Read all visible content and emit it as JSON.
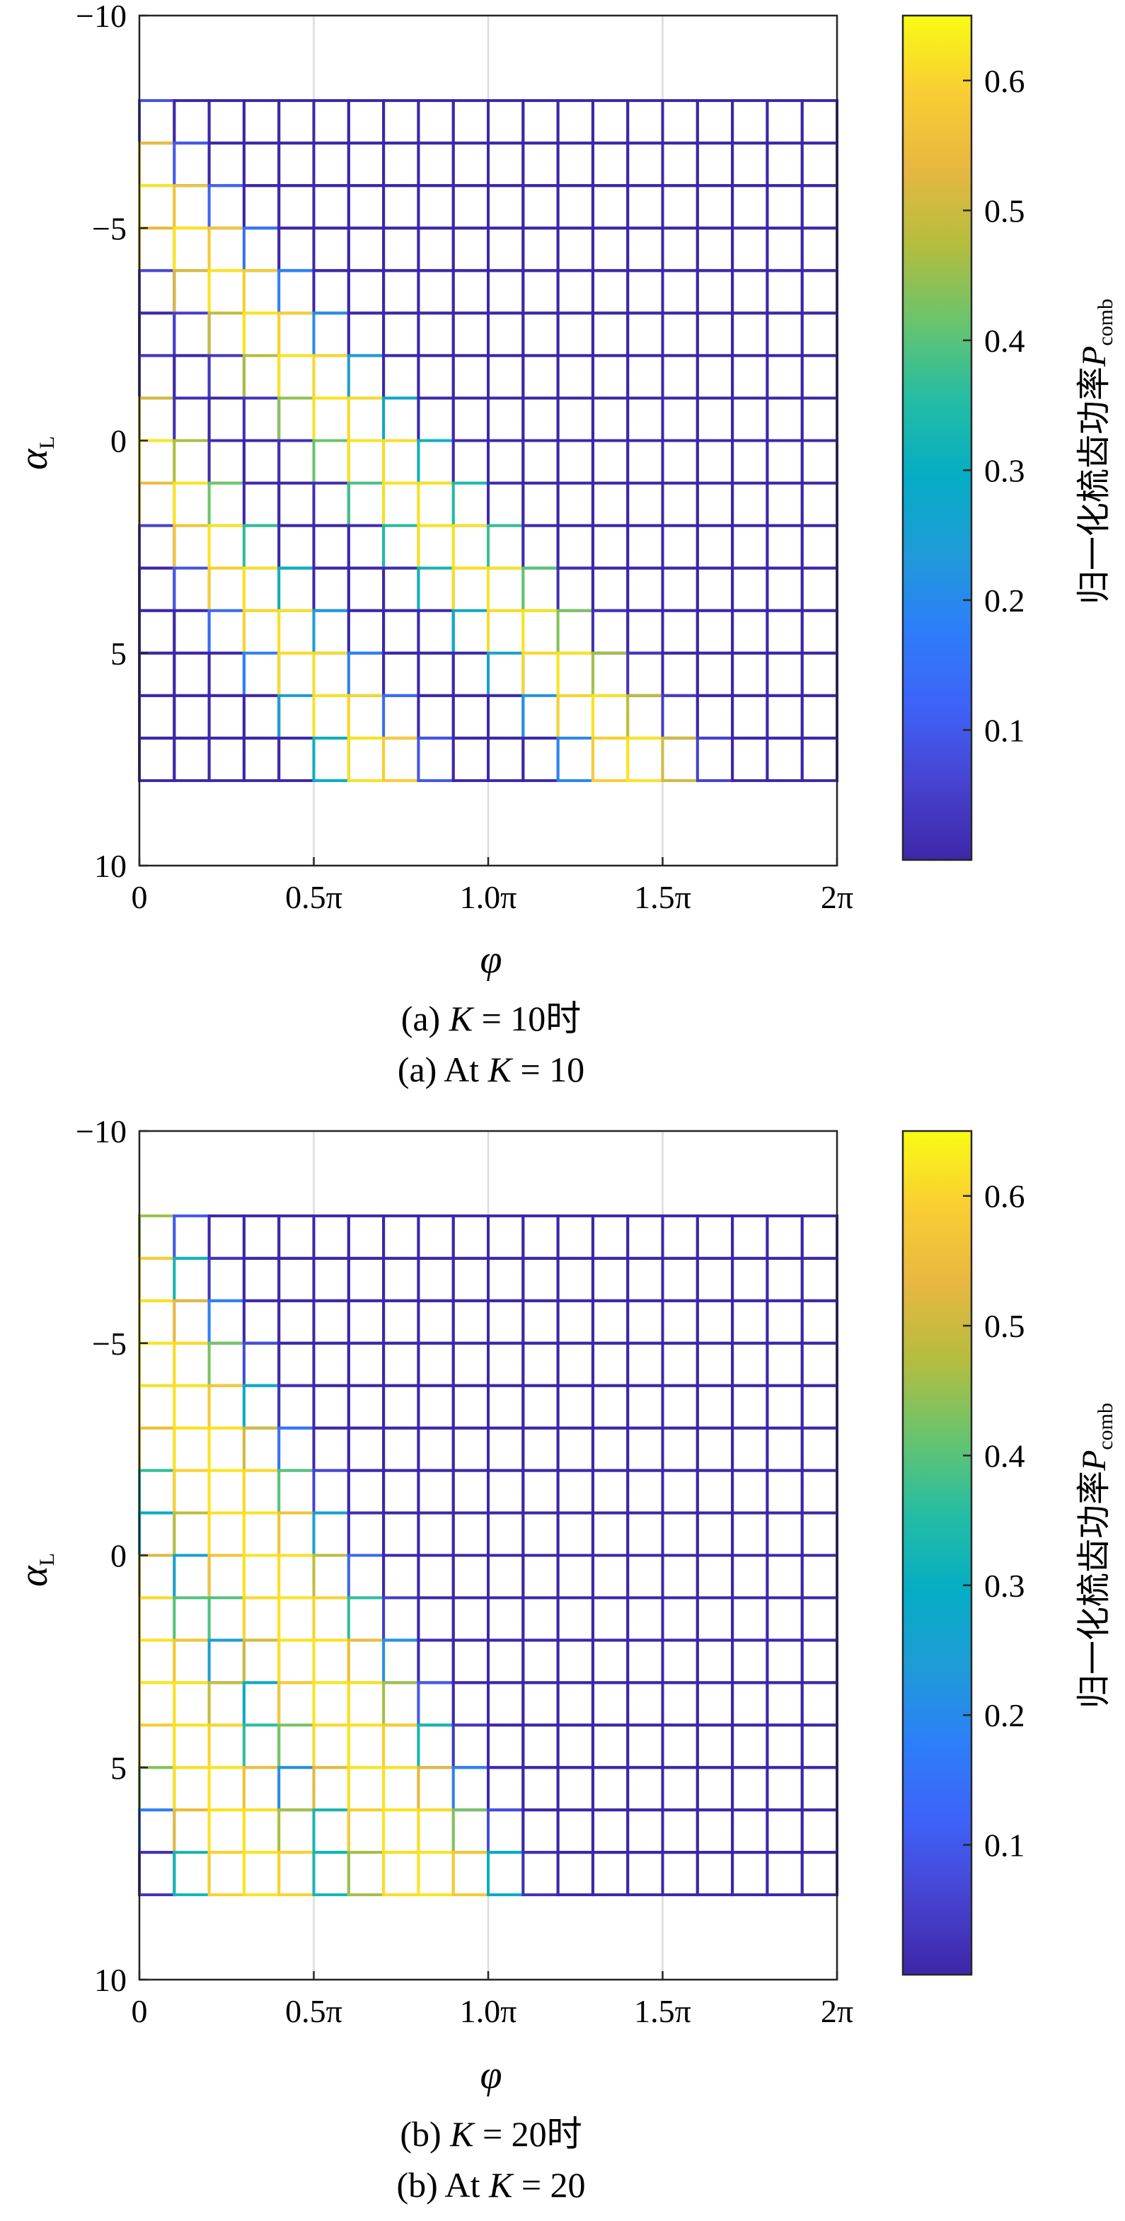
{
  "colorbar": {
    "label_prefix": "归一化梳齿功率",
    "label_symbol": "P",
    "label_subscript": "comb",
    "ticks": [
      "0.1",
      "0.2",
      "0.3",
      "0.4",
      "0.5",
      "0.6"
    ],
    "range": [
      0,
      0.65
    ],
    "colormap": [
      "#3e26a8",
      "#4743d0",
      "#3e62f8",
      "#2d7ef9",
      "#1f9bd8",
      "#05adc4",
      "#24bda4",
      "#68c46e",
      "#b4bd3f",
      "#e7b740",
      "#f9cd33",
      "#f9fb14"
    ]
  },
  "chart_data": [
    {
      "type": "heatmap",
      "panel": "a",
      "xlabel": "φ",
      "ylabel_main": "α",
      "ylabel_sub": "L",
      "x_range": [
        0,
        6.283185
      ],
      "x_ticks": [
        "0",
        "0.5π",
        "1.0π",
        "1.5π",
        "2π"
      ],
      "y_range": [
        -10,
        10
      ],
      "y_reversed": true,
      "y_ticks": [
        "−10",
        "−5",
        "0",
        "5",
        "10"
      ],
      "grid": true,
      "phi_cells": 20,
      "alpha_range": [
        -8,
        8
      ],
      "value_range": [
        0,
        0.65
      ],
      "bands": [
        {
          "start": 0.0,
          "width": 0.45,
          "slope": 3.5
        },
        {
          "start": 2.0,
          "width": 0.55,
          "slope": 3.0
        }
      ],
      "caption_cn_prefix": "(a) ",
      "caption_cn_var": "K",
      "caption_cn_suffix": " = 10时",
      "caption_en_prefix": "(a) At ",
      "caption_en_var": "K",
      "caption_en_suffix": " = 10"
    },
    {
      "type": "heatmap",
      "panel": "b",
      "xlabel": "φ",
      "ylabel_main": "α",
      "ylabel_sub": "L",
      "x_range": [
        0,
        6.283185
      ],
      "x_ticks": [
        "0",
        "0.5π",
        "1.0π",
        "1.5π",
        "2π"
      ],
      "y_range": [
        -10,
        10
      ],
      "y_reversed": true,
      "y_ticks": [
        "−10",
        "−5",
        "0",
        "5",
        "10"
      ],
      "grid": true,
      "phi_cells": 20,
      "alpha_range": [
        -8,
        8
      ],
      "value_range": [
        0,
        0.65
      ],
      "bands": [
        {
          "start": -0.4,
          "width": 0.7,
          "slope": 5.0
        },
        {
          "start": 1.1,
          "width": 0.75,
          "slope": 5.0
        }
      ],
      "caption_cn_prefix": "(b) ",
      "caption_cn_var": "K",
      "caption_cn_suffix": " = 20时",
      "caption_en_prefix": "(b) At ",
      "caption_en_var": "K",
      "caption_en_suffix": " = 20"
    }
  ]
}
